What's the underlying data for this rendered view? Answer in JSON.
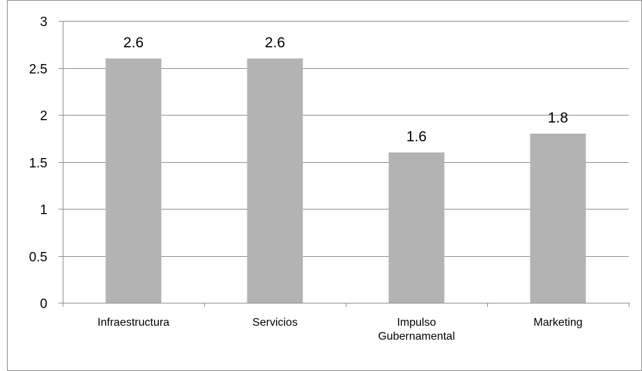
{
  "chart_data": {
    "type": "bar",
    "categories": [
      [
        "Infraestructura"
      ],
      [
        "Servicios"
      ],
      [
        "Impulso",
        "Gubernamental"
      ],
      [
        "Marketing"
      ]
    ],
    "values": [
      2.6,
      2.6,
      1.6,
      1.8
    ],
    "data_labels": [
      "2.6",
      "2.6",
      "1.6",
      "1.8"
    ],
    "y_ticks": [
      "0",
      "0.5",
      "1",
      "1.5",
      "2",
      "2.5",
      "3"
    ],
    "ylim": [
      0,
      3
    ],
    "y_tick_step": 0.5,
    "grid": true,
    "legend": "none",
    "title": "",
    "xlabel": "",
    "ylabel": "",
    "colors": {
      "bar": "#b3b3b3",
      "grid": "#8c8c8c",
      "axis": "#8c8c8c",
      "frame": "#8c8c8c"
    }
  }
}
